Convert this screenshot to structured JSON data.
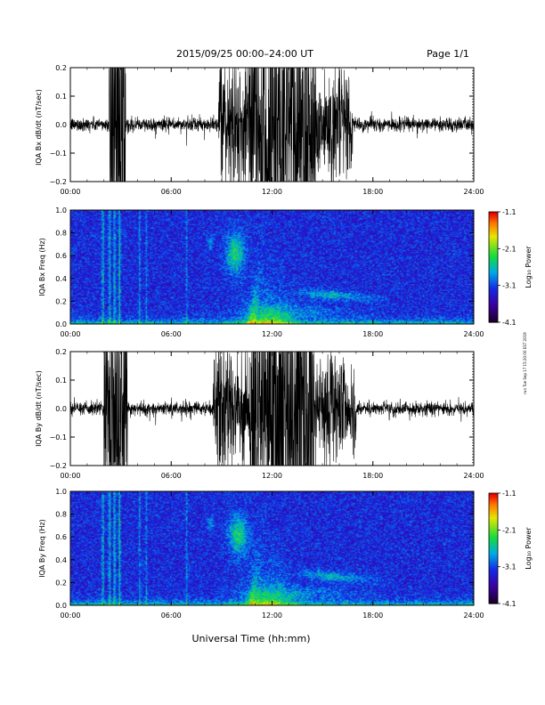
{
  "header": {
    "title": "2015/09/25  00:00–24:00 UT",
    "page": "Page 1/1"
  },
  "side_note": "run Tue Sep 17 15:20:00 EST 2019",
  "colorbar": {
    "label": "Log₁₀ Power",
    "ticks": [
      "-1.1",
      "-2.1",
      "-3.1",
      "-4.1"
    ]
  },
  "xaxis": {
    "label": "Universal Time (hh:mm)",
    "ticks": [
      "00:00",
      "06:00",
      "12:00",
      "18:00",
      "24:00"
    ]
  },
  "chart_data": [
    {
      "type": "line",
      "ylabel": "IQA Bx dB/dt (nT/sec)",
      "yticks": [
        "0.2",
        "0.1",
        "0.0",
        "−0.1",
        "−0.2"
      ],
      "ylim": [
        -0.2,
        0.2
      ],
      "xlim": [
        0,
        24
      ],
      "activity": [
        [
          2.3,
          3.3,
          6.0
        ],
        [
          8.8,
          11.0,
          1.6
        ],
        [
          10.6,
          14.6,
          4.5
        ],
        [
          14.6,
          16.8,
          1.4
        ]
      ]
    },
    {
      "type": "heatmap",
      "ylabel": "IQA Bx Freq (Hz)",
      "yticks": [
        "1.0",
        "0.8",
        "0.6",
        "0.4",
        "0.2",
        "0.0"
      ],
      "ylim": [
        0,
        1.0
      ],
      "xlim": [
        0,
        24
      ],
      "zlim": [
        -4.1,
        -1.1
      ]
    },
    {
      "type": "line",
      "ylabel": "IQA By dB/dt (nT/sec)",
      "yticks": [
        "0.2",
        "0.1",
        "0.0",
        "−0.1",
        "−0.2"
      ],
      "ylim": [
        -0.2,
        0.2
      ],
      "xlim": [
        0,
        24
      ],
      "activity": [
        [
          2.0,
          3.4,
          5.0
        ],
        [
          8.5,
          10.8,
          1.6
        ],
        [
          10.7,
          14.5,
          5.0
        ],
        [
          14.5,
          17.0,
          1.4
        ]
      ]
    },
    {
      "type": "heatmap",
      "ylabel": "IQA By Freq (Hz)",
      "yticks": [
        "1.0",
        "0.8",
        "0.6",
        "0.4",
        "0.2",
        "0.0"
      ],
      "ylim": [
        0,
        1.0
      ],
      "xlim": [
        0,
        24
      ],
      "zlim": [
        -4.1,
        -1.1
      ]
    }
  ]
}
